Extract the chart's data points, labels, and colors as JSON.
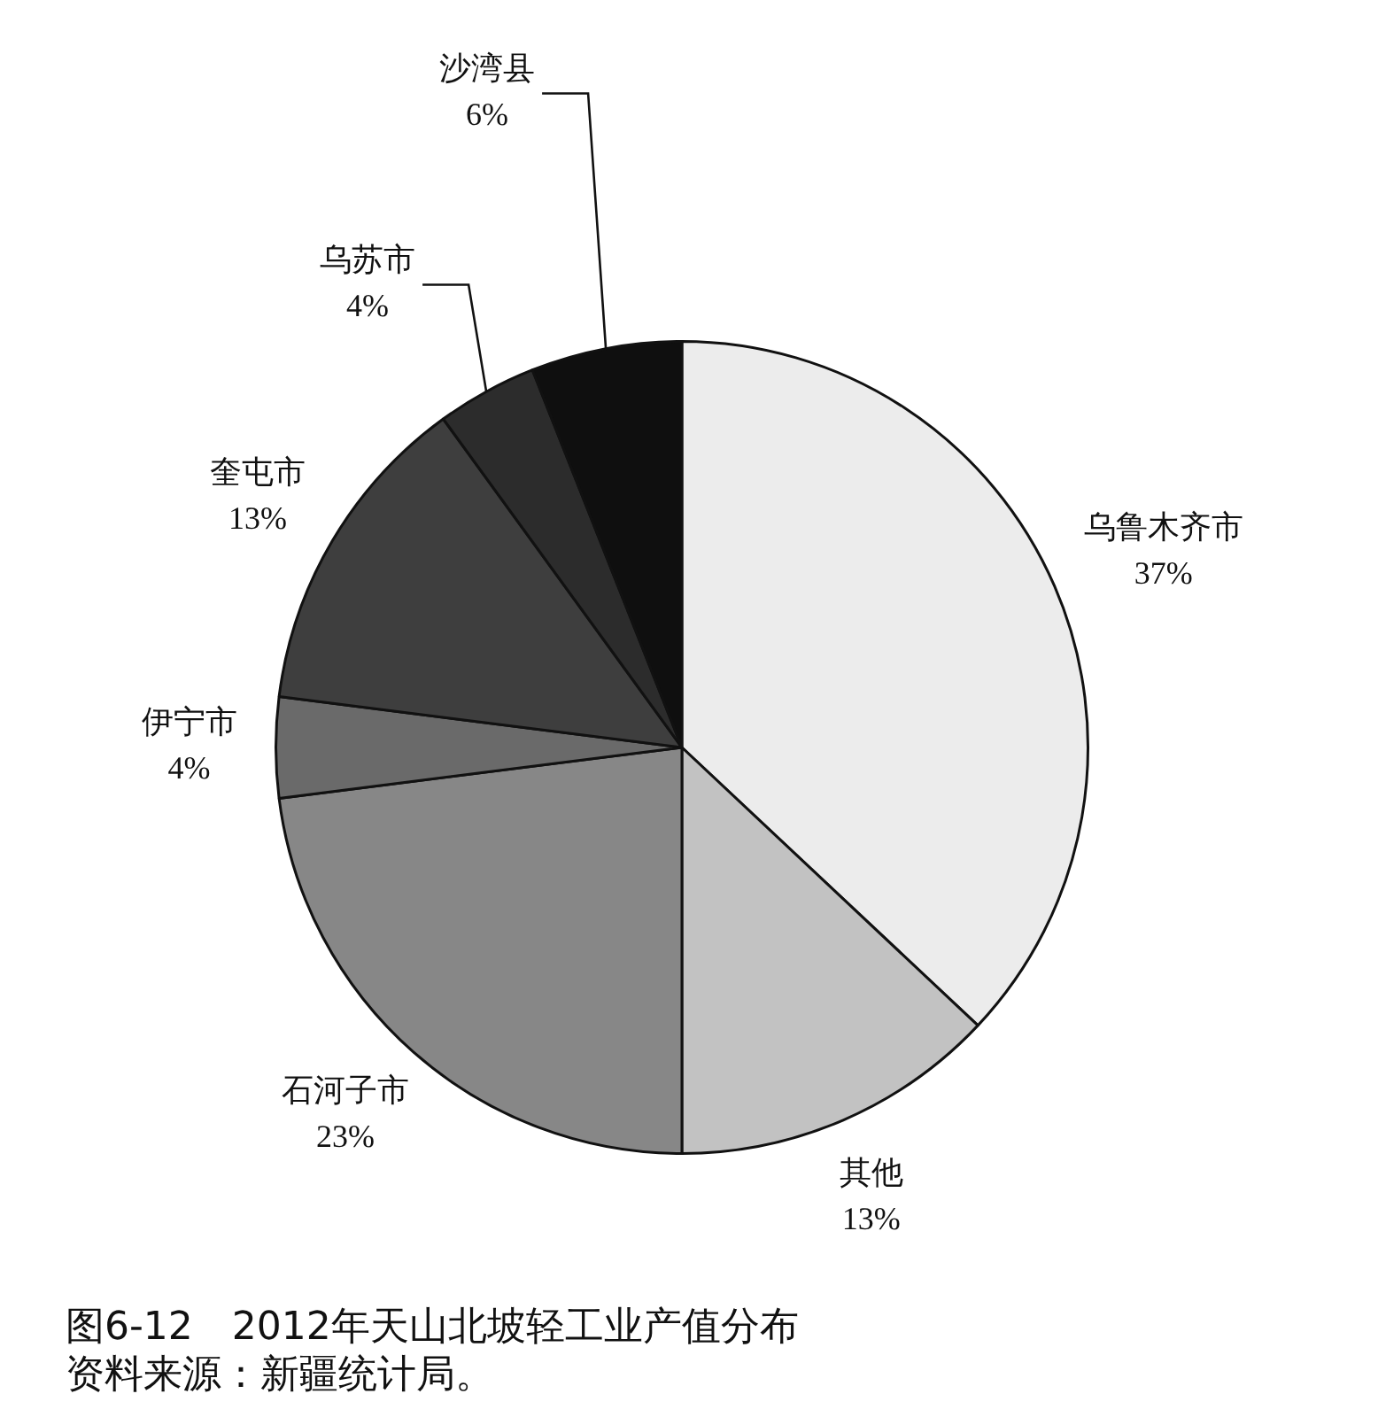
{
  "chart_data": {
    "type": "pie",
    "title": "图6-12　2012年天山北坡轻工业产值分布",
    "annotations": [
      "资料来源：新疆统计局。"
    ],
    "categories": [
      "乌鲁木齐市",
      "其他",
      "石河子市",
      "伊宁市",
      "奎屯市",
      "乌苏市",
      "沙湾县"
    ],
    "values": [
      37,
      13,
      23,
      4,
      13,
      4,
      6
    ],
    "colors": [
      "#ececec",
      "#c2c2c2",
      "#878787",
      "#6a6a6a",
      "#3e3e3e",
      "#2c2c2c",
      "#0f0f0f"
    ],
    "value_labels": [
      "37%",
      "13%",
      "23%",
      "4%",
      "13%",
      "4%",
      "6%"
    ]
  }
}
